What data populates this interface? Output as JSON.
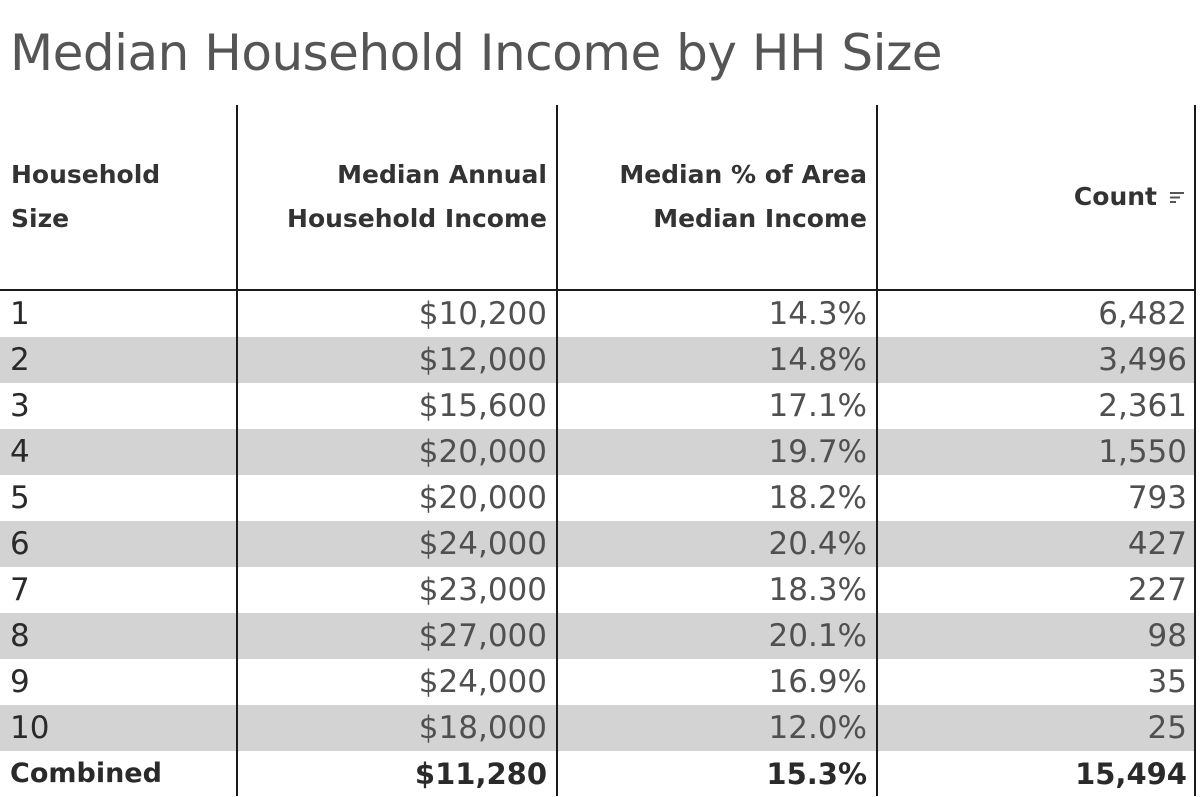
{
  "title": "Median Household Income by HH Size",
  "columns": [
    {
      "label": "Household\nSize",
      "align": "left"
    },
    {
      "label": "Median Annual\nHousehold Income",
      "align": "right"
    },
    {
      "label": "Median % of Area\nMedian Income",
      "align": "right"
    },
    {
      "label": "Count",
      "align": "right",
      "icon": "sort-icon"
    }
  ],
  "rows": [
    [
      "1",
      "$10,200",
      "14.3%",
      "6,482"
    ],
    [
      "2",
      "$12,000",
      "14.8%",
      "3,496"
    ],
    [
      "3",
      "$15,600",
      "17.1%",
      "2,361"
    ],
    [
      "4",
      "$20,000",
      "19.7%",
      "1,550"
    ],
    [
      "5",
      "$20,000",
      "18.2%",
      "793"
    ],
    [
      "6",
      "$24,000",
      "20.4%",
      "427"
    ],
    [
      "7",
      "$23,000",
      "18.3%",
      "227"
    ],
    [
      "8",
      "$27,000",
      "20.1%",
      "98"
    ],
    [
      "9",
      "$24,000",
      "16.9%",
      "35"
    ],
    [
      "10",
      "$18,000",
      "12.0%",
      "25"
    ]
  ],
  "total": [
    "Combined",
    "$11,280",
    "15.3%",
    "15,494"
  ],
  "colors": {
    "row_band": "#d3d3d3",
    "grid": "#1a1a1a",
    "title": "#555555"
  },
  "chart_data": {
    "type": "table",
    "title": "Median Household Income by HH Size",
    "columns": [
      "Household Size",
      "Median Annual Household Income",
      "Median % of Area Median Income",
      "Count"
    ],
    "household_size": [
      "1",
      "2",
      "3",
      "4",
      "5",
      "6",
      "7",
      "8",
      "9",
      "10",
      "Combined"
    ],
    "median_annual_household_income": [
      10200,
      12000,
      15600,
      20000,
      20000,
      24000,
      23000,
      27000,
      24000,
      18000,
      11280
    ],
    "median_pct_area_median_income": [
      14.3,
      14.8,
      17.1,
      19.7,
      18.2,
      20.4,
      18.3,
      20.1,
      16.9,
      12.0,
      15.3
    ],
    "count": [
      6482,
      3496,
      2361,
      1550,
      793,
      427,
      227,
      98,
      35,
      25,
      15494
    ]
  }
}
